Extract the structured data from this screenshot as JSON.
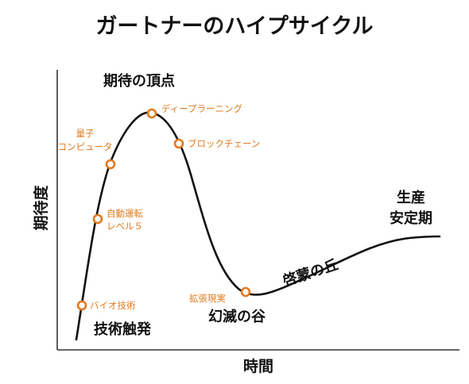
{
  "title": "ガートナーのハイプサイクル",
  "axes": {
    "x_label": "時間",
    "y_label": "期待度"
  },
  "phases": {
    "trigger": "技術触発",
    "peak": "期待の頂点",
    "trough": "幻滅の谷",
    "slope": "啓蒙の丘",
    "plateau_line1": "生産",
    "plateau_line2": "安定期"
  },
  "technologies": {
    "bio": "バイオ技術",
    "autonomous_line1": "自動運転",
    "autonomous_line2": "レベル５",
    "quantum_line1": "量子",
    "quantum_line2": "コンピュータ",
    "deep_learning": "ディープラーニング",
    "blockchain": "ブロックチェーン",
    "ar": "拡張現実"
  },
  "colors": {
    "curve": "#111111",
    "marker": "#e07a1f",
    "axis": "#333333"
  }
}
